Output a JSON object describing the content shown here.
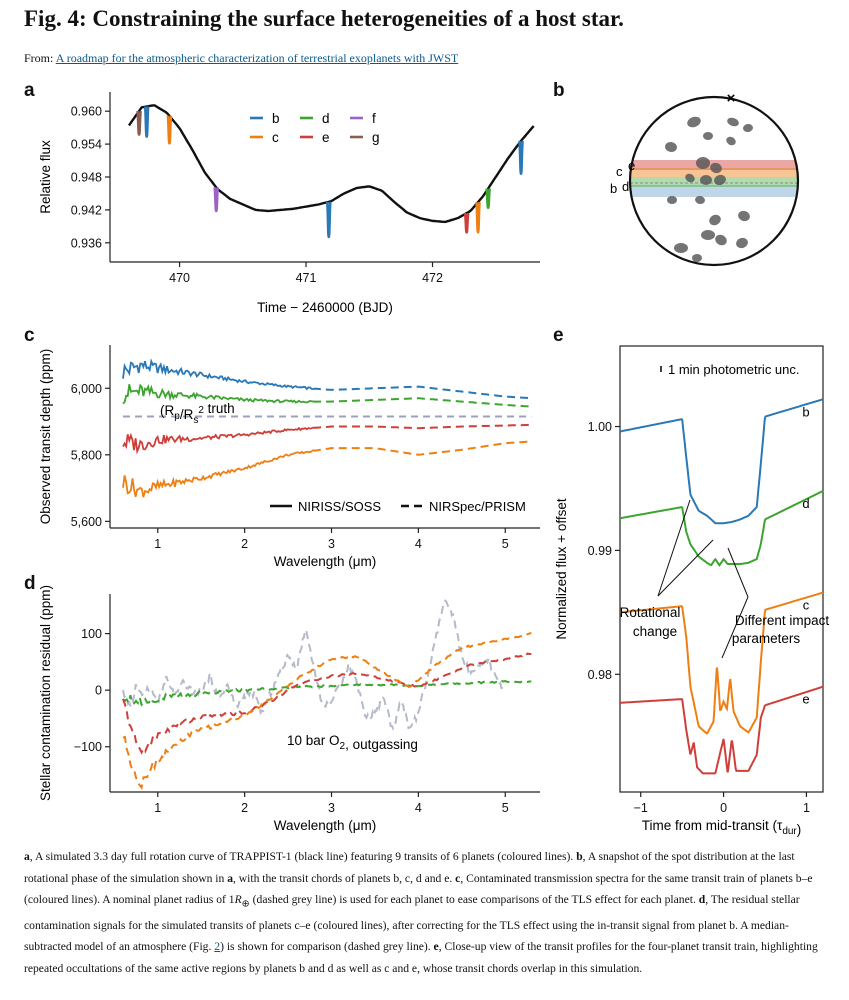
{
  "header": {
    "title": "Fig. 4: Constraining the surface heterogeneities of a host star.",
    "from_label": "From:",
    "source_link": "A roadmap for the atmospheric characterization of terrestrial exoplanets with JWST"
  },
  "panel_labels": {
    "a": "a",
    "b": "b",
    "c": "c",
    "d": "d",
    "e": "e"
  },
  "colors": {
    "b": "#2a78b5",
    "c": "#ee7f13",
    "d": "#3ca42f",
    "e": "#cf3f3a",
    "f": "#9b63c7",
    "g": "#8c5b4f",
    "curve": "#111111",
    "truth": "#9aa3bb",
    "model": "#b4bac9"
  },
  "chart_data": [
    {
      "id": "a",
      "type": "line",
      "xlabel": "Time − 2460000 (BJD)",
      "ylabel": "Relative flux",
      "xlim": [
        469.45,
        472.85
      ],
      "ylim": [
        0.9325,
        0.9635
      ],
      "xticks": [
        470,
        471,
        472
      ],
      "yticks": [
        0.936,
        0.942,
        0.948,
        0.954,
        0.96
      ],
      "ytick_labels": [
        "0.936",
        "0.942",
        "0.948",
        "0.954",
        "0.960"
      ],
      "rotation_curve": {
        "x": [
          469.6,
          469.7,
          469.8,
          469.9,
          470.0,
          470.1,
          470.2,
          470.3,
          470.4,
          470.5,
          470.6,
          470.7,
          470.8,
          470.9,
          471.0,
          471.1,
          471.2,
          471.3,
          471.4,
          471.5,
          471.6,
          471.7,
          471.8,
          471.9,
          472.0,
          472.1,
          472.2,
          472.3,
          472.4,
          472.5,
          472.6,
          472.7,
          472.8
        ],
        "y": [
          0.9574,
          0.9607,
          0.9611,
          0.9597,
          0.9569,
          0.953,
          0.9488,
          0.9458,
          0.944,
          0.943,
          0.942,
          0.9418,
          0.942,
          0.9422,
          0.9426,
          0.943,
          0.9436,
          0.945,
          0.946,
          0.9463,
          0.9455,
          0.9434,
          0.9415,
          0.9405,
          0.94,
          0.9398,
          0.9405,
          0.9418,
          0.9445,
          0.948,
          0.9515,
          0.9546,
          0.9573
        ]
      },
      "legend": [
        "b",
        "c",
        "d",
        "e",
        "f",
        "g"
      ],
      "transits": [
        {
          "planet": "g",
          "t": 469.68,
          "depth": 0.0043
        },
        {
          "planet": "b",
          "t": 469.74,
          "depth": 0.0055
        },
        {
          "planet": "c",
          "t": 469.92,
          "depth": 0.005
        },
        {
          "planet": "f",
          "t": 470.29,
          "depth": 0.0043
        },
        {
          "planet": "b",
          "t": 471.18,
          "depth": 0.0064
        },
        {
          "planet": "e",
          "t": 472.27,
          "depth": 0.0035
        },
        {
          "planet": "c",
          "t": 472.36,
          "depth": 0.0055
        },
        {
          "planet": "d",
          "t": 472.44,
          "depth": 0.0035
        },
        {
          "planet": "b",
          "t": 472.7,
          "depth": 0.006
        }
      ]
    },
    {
      "id": "c",
      "type": "line",
      "xlabel": "Wavelength (μm)",
      "ylabel": "Observed transit depth (ppm)",
      "xlim": [
        0.45,
        5.4
      ],
      "ylim": [
        5580,
        6130
      ],
      "xticks": [
        1,
        2,
        3,
        4,
        5
      ],
      "yticks": [
        5600,
        5800,
        6000
      ],
      "ytick_labels": [
        "5,600",
        "5,800",
        "6,000"
      ],
      "truth": 5915,
      "truth_label_prefix": "(R",
      "truth_label_sub1": "p",
      "truth_label_mid": "/R",
      "truth_label_sub2": "s",
      "truth_label_sup": "2",
      "truth_label_suffix": " truth",
      "legend": [
        "NIRISS/SOSS",
        "NIRSpec/PRISM"
      ],
      "solid_end": 2.8,
      "series": [
        {
          "planet": "b",
          "x": [
            0.6,
            0.8,
            1.0,
            1.5,
            2.0,
            2.5,
            3.0,
            3.5,
            4.0,
            4.5,
            5.0,
            5.3
          ],
          "y": [
            6050,
            6070,
            6060,
            6040,
            6020,
            6005,
            5995,
            6000,
            6005,
            5990,
            5975,
            5970
          ]
        },
        {
          "planet": "d",
          "x": [
            0.6,
            0.8,
            1.0,
            1.5,
            2.0,
            2.5,
            3.0,
            3.5,
            4.0,
            4.5,
            5.0,
            5.3
          ],
          "y": [
            5985,
            5990,
            5985,
            5975,
            5965,
            5960,
            5960,
            5965,
            5970,
            5960,
            5950,
            5945
          ]
        },
        {
          "planet": "e",
          "x": [
            0.6,
            0.8,
            1.0,
            1.5,
            2.0,
            2.5,
            3.0,
            3.5,
            4.0,
            4.5,
            5.0,
            5.3
          ],
          "y": [
            5840,
            5830,
            5845,
            5850,
            5860,
            5875,
            5885,
            5885,
            5880,
            5885,
            5888,
            5890
          ]
        },
        {
          "planet": "c",
          "x": [
            0.6,
            0.8,
            1.0,
            1.5,
            2.0,
            2.5,
            3.0,
            3.5,
            4.0,
            4.5,
            5.0,
            5.3
          ],
          "y": [
            5720,
            5690,
            5705,
            5730,
            5760,
            5800,
            5820,
            5820,
            5800,
            5815,
            5835,
            5840
          ]
        }
      ]
    },
    {
      "id": "d",
      "type": "line",
      "xlabel": "Wavelength (μm)",
      "ylabel": "Stellar contamination residual (ppm)",
      "xlim": [
        0.45,
        5.4
      ],
      "ylim": [
        -180,
        170
      ],
      "xticks": [
        1,
        2,
        3,
        4,
        5
      ],
      "yticks": [
        -100,
        0,
        100
      ],
      "ytick_labels": [
        "−100",
        "0",
        "100"
      ],
      "annotation_prefix": "10 bar O",
      "annotation_sub": "2",
      "annotation_suffix": ", outgassing",
      "series": [
        {
          "planet": "d",
          "x": [
            0.6,
            0.7,
            0.8,
            1.0,
            1.5,
            2.0,
            2.5,
            3.0,
            3.5,
            4.0,
            4.5,
            5.0,
            5.3
          ],
          "y": [
            -10,
            -15,
            -20,
            -15,
            -5,
            0,
            5,
            8,
            10,
            8,
            12,
            15,
            15
          ]
        },
        {
          "planet": "e",
          "x": [
            0.6,
            0.7,
            0.8,
            1.0,
            1.3,
            1.6,
            2.0,
            2.3,
            2.6,
            3.0,
            3.3,
            3.6,
            4.0,
            4.3,
            4.6,
            5.0,
            5.3
          ],
          "y": [
            -20,
            -70,
            -110,
            -80,
            -55,
            -45,
            -40,
            -20,
            10,
            25,
            30,
            20,
            5,
            25,
            45,
            55,
            65
          ]
        },
        {
          "planet": "c",
          "x": [
            0.6,
            0.7,
            0.8,
            0.9,
            1.1,
            1.4,
            1.7,
            2.0,
            2.3,
            2.6,
            3.0,
            3.3,
            3.6,
            3.9,
            4.2,
            4.5,
            5.0,
            5.3
          ],
          "y": [
            -80,
            -130,
            -170,
            -140,
            -110,
            -75,
            -60,
            -45,
            -15,
            20,
            55,
            60,
            30,
            5,
            45,
            75,
            90,
            100
          ]
        }
      ],
      "model": {
        "x": [
          0.6,
          0.7,
          0.75,
          0.8,
          0.9,
          1.0,
          1.1,
          1.2,
          1.3,
          1.4,
          1.5,
          1.6,
          1.7,
          1.8,
          1.9,
          2.0,
          2.1,
          2.2,
          2.3,
          2.4,
          2.5,
          2.6,
          2.7,
          2.8,
          2.9,
          3.0,
          3.1,
          3.2,
          3.3,
          3.4,
          3.5,
          3.6,
          3.7,
          3.8,
          3.9,
          4.0,
          4.1,
          4.2,
          4.3,
          4.4,
          4.5,
          4.6,
          4.7,
          4.8,
          4.9,
          5.0
        ],
        "y": [
          -5,
          -30,
          10,
          -10,
          5,
          -20,
          20,
          -10,
          15,
          -5,
          0,
          25,
          -15,
          10,
          -30,
          -10,
          -5,
          -40,
          -5,
          30,
          60,
          40,
          110,
          40,
          -30,
          -20,
          10,
          45,
          10,
          -50,
          -40,
          -10,
          -70,
          -20,
          -70,
          -40,
          20,
          90,
          160,
          130,
          60,
          30,
          40,
          55,
          20,
          0
        ]
      }
    },
    {
      "id": "e",
      "type": "line",
      "xlabel_prefix": "Time from mid-transit (τ",
      "xlabel_sub": "dur",
      "xlabel_suffix": ")",
      "ylabel": "Normalized flux + offset",
      "xlim": [
        -1.25,
        1.2
      ],
      "ylim": [
        0.9705,
        1.0065
      ],
      "xticks": [
        -1,
        0,
        1
      ],
      "yticks": [
        0.98,
        0.99,
        1.0
      ],
      "ytick_labels": [
        "0.98",
        "0.99",
        "1.00"
      ],
      "note": "1 min photometric unc.",
      "annotations": [
        "Rotational change",
        "Different impact parameters"
      ],
      "series": [
        {
          "planet": "b",
          "x": [
            -1.25,
            -0.5,
            -0.45,
            -0.4,
            -0.3,
            -0.2,
            -0.1,
            0,
            0.1,
            0.2,
            0.3,
            0.4,
            0.45,
            0.5,
            1.2
          ],
          "y": [
            0.9996,
            1.0006,
            0.9975,
            0.9945,
            0.9932,
            0.9928,
            0.9922,
            0.9922,
            0.9923,
            0.9925,
            0.9928,
            0.9935,
            0.997,
            1.0008,
            1.0022
          ]
        },
        {
          "planet": "d",
          "x": [
            -1.25,
            -0.5,
            -0.45,
            -0.4,
            -0.3,
            -0.2,
            -0.15,
            -0.1,
            -0.05,
            0,
            0.05,
            0.1,
            0.2,
            0.3,
            0.4,
            0.45,
            0.5,
            1.2
          ],
          "y": [
            0.9926,
            0.9935,
            0.9915,
            0.9905,
            0.9895,
            0.989,
            0.9888,
            0.9893,
            0.9888,
            0.9893,
            0.9889,
            0.9889,
            0.9889,
            0.989,
            0.9893,
            0.9905,
            0.9925,
            0.9948
          ]
        },
        {
          "planet": "c",
          "x": [
            -1.25,
            -0.5,
            -0.45,
            -0.4,
            -0.3,
            -0.2,
            -0.12,
            -0.08,
            -0.04,
            0,
            0.04,
            0.08,
            0.12,
            0.2,
            0.3,
            0.4,
            0.45,
            0.5,
            1.2
          ],
          "y": [
            0.985,
            0.9855,
            0.983,
            0.979,
            0.9758,
            0.9752,
            0.9762,
            0.9808,
            0.977,
            0.9778,
            0.9772,
            0.9797,
            0.977,
            0.9758,
            0.9753,
            0.9765,
            0.981,
            0.9852,
            0.9866
          ]
        },
        {
          "planet": "e",
          "x": [
            -1.25,
            -0.5,
            -0.45,
            -0.4,
            -0.36,
            -0.32,
            -0.25,
            -0.1,
            0,
            0.05,
            0.1,
            0.15,
            0.2,
            0.3,
            0.4,
            0.45,
            0.5,
            1.2
          ],
          "y": [
            0.9777,
            0.978,
            0.9755,
            0.9735,
            0.9745,
            0.9725,
            0.972,
            0.972,
            0.9748,
            0.972,
            0.9748,
            0.9722,
            0.9722,
            0.9722,
            0.9735,
            0.9765,
            0.9775,
            0.979
          ]
        }
      ]
    },
    {
      "id": "b",
      "type": "diagram",
      "chord_planets": [
        "e",
        "c",
        "b",
        "d"
      ],
      "chord_labels_top": [
        "c",
        "e"
      ],
      "chord_labels_bottom": [
        "b",
        "d"
      ]
    }
  ],
  "caption": {
    "a": "a",
    "a_text": ", A simulated 3.3 day full rotation curve of TRAPPIST-1 (black line) featuring 9 transits of 6 planets (coloured lines). ",
    "b": "b",
    "b_text": ", A snapshot of the spot distribution at the last rotational phase of the simulation shown in ",
    "b_ref": "a",
    "b_text2": ", with the transit chords of planets b, c, d and e. ",
    "c": "c",
    "c_text": ", Contaminated transmission spectra for the same transit train of planets b–e (coloured lines). A nominal planet radius of 1",
    "c_unit": "R",
    "c_unit_sub": "⊕",
    "c_text2": " (dashed grey line) is used for each planet to ease comparisons of the TLS effect for each planet. ",
    "d": "d",
    "d_text": ", The residual stellar contamination signals for the simulated transits of planets c–e (coloured lines), after correcting for the TLS effect using the in-transit signal from planet b. A median-subtracted model of an atmosphere (Fig. ",
    "d_link": "2",
    "d_text2": ") is shown for comparison (dashed grey line). ",
    "e": "e",
    "e_text": ", Close-up view of the transit profiles for the four-planet transit train, highlighting repeated occultations of the same active regions by planets b and d as well as c and e, whose transit chords overlap in this simulation."
  }
}
